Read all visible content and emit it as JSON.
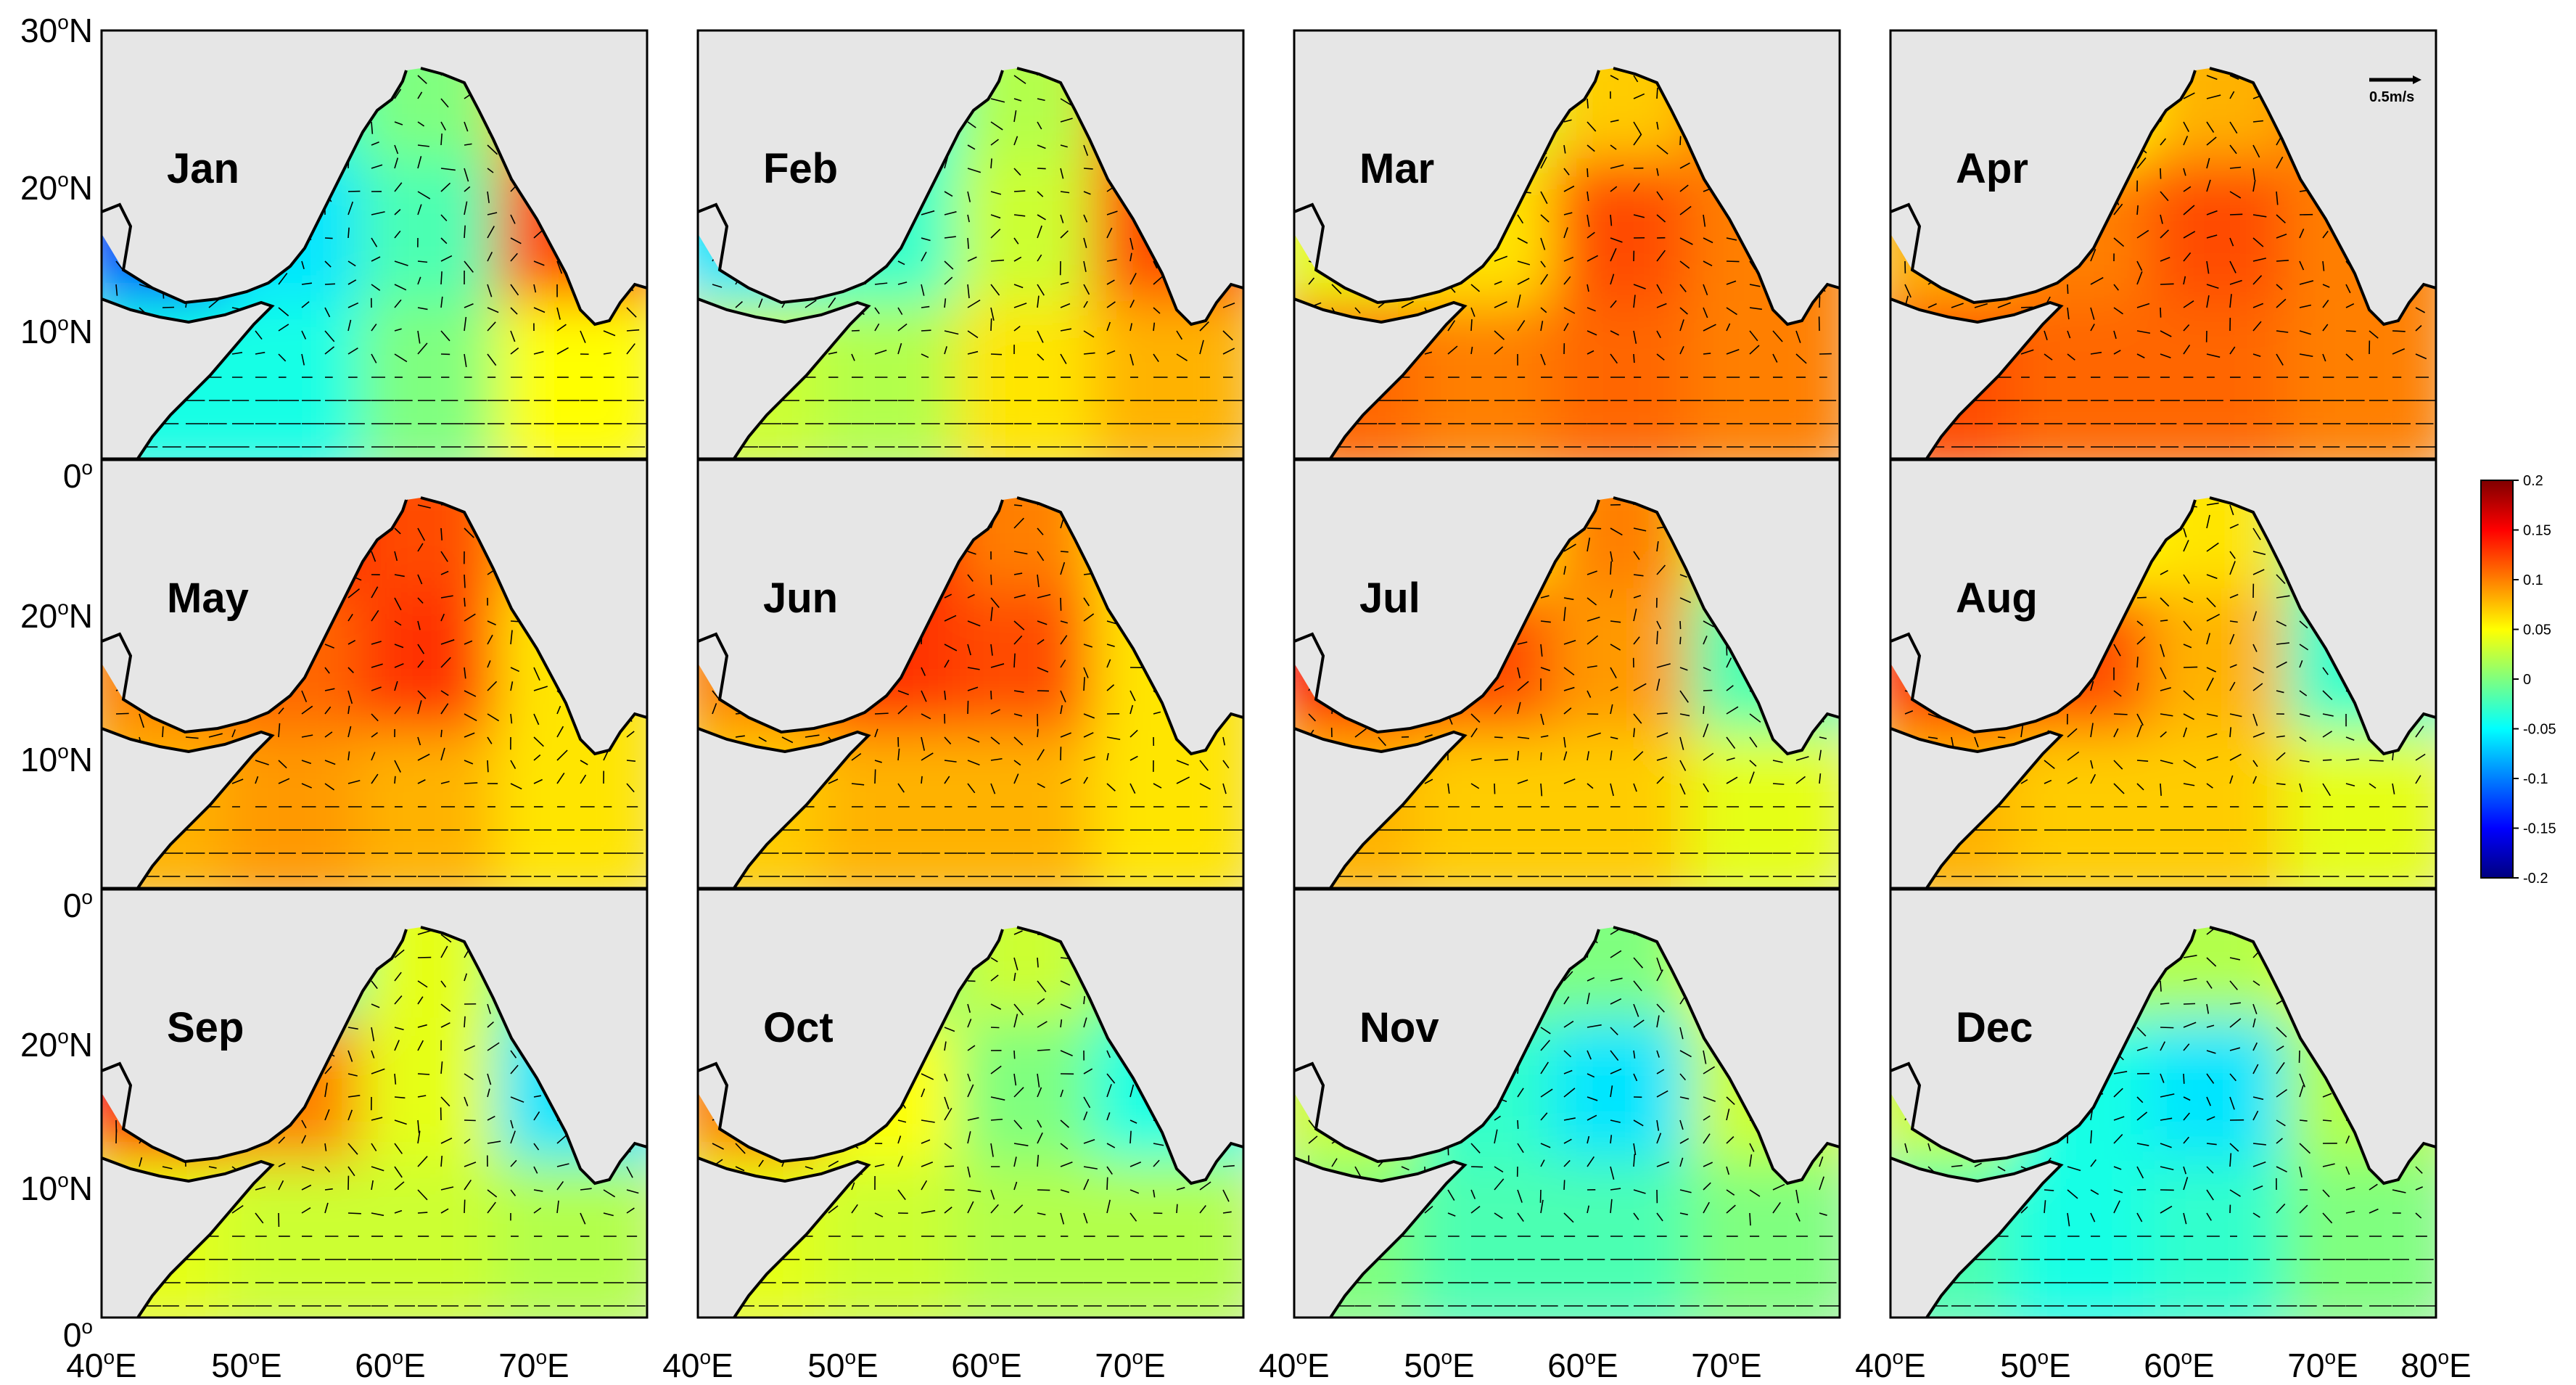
{
  "colors": {
    "ocean_background": "#e6e6e6",
    "colormap": [
      "#00007f",
      "#0000ff",
      "#007fff",
      "#00ffff",
      "#7fff7f",
      "#ffff00",
      "#ff7f00",
      "#ff0000",
      "#7f0000"
    ]
  },
  "panels": [
    {
      "month": "Jan",
      "field": [
        [
          -0.05,
          -0.03,
          0.0,
          0.08
        ],
        [
          -0.12,
          -0.06,
          -0.02,
          0.12
        ],
        [
          -0.04,
          -0.04,
          0.0,
          0.05
        ]
      ]
    },
    {
      "month": "Feb",
      "field": [
        [
          -0.02,
          -0.04,
          0.02,
          0.1
        ],
        [
          -0.06,
          -0.03,
          0.03,
          0.12
        ],
        [
          0.03,
          0.02,
          0.06,
          0.08
        ]
      ]
    },
    {
      "month": "Mar",
      "field": [
        [
          0.1,
          0.03,
          0.07,
          0.1
        ],
        [
          0.04,
          0.06,
          0.12,
          0.1
        ],
        [
          0.11,
          0.1,
          0.11,
          0.1
        ]
      ]
    },
    {
      "month": "Apr",
      "field": [
        [
          0.13,
          0.05,
          0.08,
          0.1
        ],
        [
          0.08,
          0.1,
          0.12,
          0.1
        ],
        [
          0.12,
          0.11,
          0.11,
          0.1
        ]
      ]
    },
    {
      "month": "May",
      "field": [
        [
          0.18,
          0.14,
          0.12,
          0.08
        ],
        [
          0.1,
          0.11,
          0.13,
          0.06
        ],
        [
          0.08,
          0.09,
          0.08,
          0.06
        ]
      ]
    },
    {
      "month": "Jun",
      "field": [
        [
          0.17,
          0.15,
          0.1,
          0.06
        ],
        [
          0.1,
          0.13,
          0.12,
          0.06
        ],
        [
          0.07,
          0.08,
          0.08,
          0.06
        ]
      ]
    },
    {
      "month": "Jul",
      "field": [
        [
          -0.05,
          0.06,
          0.1,
          0.03
        ],
        [
          0.14,
          0.12,
          0.09,
          -0.02
        ],
        [
          0.08,
          0.07,
          0.07,
          0.04
        ]
      ]
    },
    {
      "month": "Aug",
      "field": [
        [
          -0.08,
          0.05,
          0.06,
          -0.01
        ],
        [
          0.13,
          0.12,
          0.08,
          -0.03
        ],
        [
          0.08,
          0.07,
          0.07,
          0.04
        ]
      ]
    },
    {
      "month": "Sep",
      "field": [
        [
          -0.1,
          -0.02,
          0.04,
          -0.02
        ],
        [
          0.14,
          0.1,
          0.04,
          -0.06
        ],
        [
          0.04,
          0.03,
          0.03,
          0.02
        ]
      ]
    },
    {
      "month": "Oct",
      "field": [
        [
          -0.08,
          0.0,
          0.03,
          0.0
        ],
        [
          0.1,
          0.05,
          0.0,
          -0.04
        ],
        [
          0.04,
          0.03,
          0.02,
          0.02
        ]
      ]
    },
    {
      "month": "Nov",
      "field": [
        [
          0.1,
          0.0,
          0.0,
          0.05
        ],
        [
          0.03,
          -0.03,
          -0.06,
          0.03
        ],
        [
          0.0,
          -0.02,
          -0.02,
          0.0
        ]
      ]
    },
    {
      "month": "Dec",
      "field": [
        [
          0.08,
          0.02,
          0.02,
          0.04
        ],
        [
          0.03,
          -0.04,
          -0.06,
          0.02
        ],
        [
          -0.02,
          -0.04,
          -0.03,
          0.0
        ]
      ]
    }
  ],
  "y_axis": {
    "row_labels": [
      {
        "value": "30",
        "unit": "N",
        "deg": "o"
      },
      {
        "value": "20",
        "unit": "N",
        "deg": "o"
      },
      {
        "value": "10",
        "unit": "N",
        "deg": "o"
      },
      {
        "value": "0",
        "unit": "",
        "deg": "o"
      }
    ],
    "ticks_rows_2_3": [
      {
        "value": "20",
        "unit": "N",
        "deg": "o"
      },
      {
        "value": "10",
        "unit": "N",
        "deg": "o"
      },
      {
        "value": "0",
        "unit": "",
        "deg": "o"
      }
    ]
  },
  "x_axis": {
    "ticks": [
      {
        "value": "40",
        "unit": "E"
      },
      {
        "value": "50",
        "unit": "E"
      },
      {
        "value": "60",
        "unit": "E"
      },
      {
        "value": "70",
        "unit": "E"
      }
    ],
    "last_column_extra": {
      "value": "80",
      "unit": "E"
    }
  },
  "colorbar": {
    "ticks": [
      "0.2",
      "0.15",
      "0.1",
      "0.05",
      "0",
      "-0.05",
      "-0.1",
      "-0.15",
      "-0.2"
    ],
    "min": -0.2,
    "max": 0.2
  },
  "reference_vector": {
    "label": "0.5m/s"
  }
}
